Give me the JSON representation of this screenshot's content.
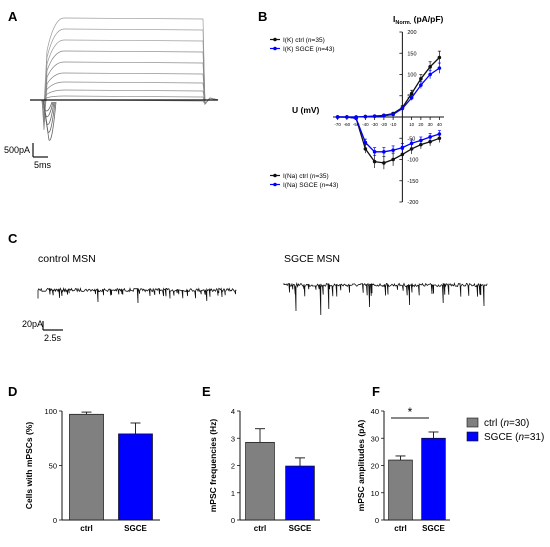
{
  "panels": {
    "A": {
      "label": "A",
      "scale_current": "500pA",
      "scale_time": "5ms"
    },
    "B": {
      "label": "B"
    },
    "C": {
      "label": "C",
      "trace_labels": [
        "control MSN",
        "SGCE MSN"
      ],
      "scale_current": "20pA",
      "scale_time": "2.5s"
    },
    "D": {
      "label": "D"
    },
    "E": {
      "label": "E"
    },
    "F": {
      "label": "F",
      "significance": "*"
    }
  },
  "legend_bars": [
    {
      "prefix": "ctrl (",
      "n_italic": "n",
      "suffix": "=30)",
      "color": "#808080"
    },
    {
      "prefix": "SGCE (",
      "n_italic": "n",
      "suffix": "=31)",
      "color": "#0000ff"
    }
  ],
  "colors": {
    "ctrl": "#808080",
    "sgce": "#0000ff",
    "black": "#111111"
  },
  "chart_data": [
    {
      "panel": "B",
      "type": "line",
      "xlabel": "U (mV)",
      "ylabel_main": "I",
      "ylabel_sub": "Norm.",
      "ylabel_unit": " (pA/pF)",
      "xlim": [
        -75,
        45
      ],
      "ylim": [
        -200,
        200
      ],
      "x_ticks": [
        -70,
        -60,
        -50,
        -40,
        -30,
        -20,
        -10,
        10,
        20,
        30,
        40
      ],
      "y_ticks": [
        -200,
        -150,
        -100,
        -50,
        50,
        100,
        150,
        200
      ],
      "x": [
        -70,
        -60,
        -50,
        -40,
        -30,
        -20,
        -10,
        0,
        10,
        20,
        30,
        40
      ],
      "series": [
        {
          "name": "I(K) ctrl",
          "n": "35",
          "color": "#111111",
          "legend_group": "top",
          "values": [
            0,
            0,
            0,
            1,
            2,
            4,
            8,
            22,
            55,
            90,
            118,
            140
          ],
          "err": [
            0,
            0,
            0,
            0,
            1,
            2,
            3,
            5,
            8,
            10,
            12,
            15
          ]
        },
        {
          "name": "I(K) SGCE",
          "n": "43",
          "color": "#0000ff",
          "legend_group": "top",
          "values": [
            0,
            0,
            0,
            1,
            2,
            3,
            6,
            20,
            45,
            75,
            100,
            115
          ],
          "err": [
            0,
            0,
            0,
            0,
            1,
            2,
            3,
            4,
            6,
            8,
            10,
            12
          ]
        },
        {
          "name": "I(Na) ctrl",
          "n": "35",
          "color": "#111111",
          "legend_group": "bottom",
          "values": [
            0,
            0,
            -3,
            -75,
            -105,
            -108,
            -100,
            -88,
            -75,
            -65,
            -58,
            -50
          ],
          "err": [
            0,
            0,
            2,
            10,
            15,
            15,
            15,
            12,
            12,
            10,
            10,
            10
          ]
        },
        {
          "name": "I(Na) SGCE",
          "n": "43",
          "color": "#0000ff",
          "legend_group": "bottom",
          "values": [
            0,
            0,
            -3,
            -60,
            -82,
            -82,
            -78,
            -72,
            -62,
            -55,
            -47,
            -40
          ],
          "err": [
            0,
            0,
            2,
            8,
            10,
            10,
            10,
            10,
            8,
            8,
            8,
            8
          ]
        }
      ]
    },
    {
      "panel": "D",
      "type": "bar",
      "ylabel": "Cells with mPSCs (%)",
      "ylim": [
        0,
        100
      ],
      "y_ticks": [
        0,
        50,
        100
      ],
      "categories": [
        "ctrl",
        "SGCE"
      ],
      "values": [
        97,
        79
      ],
      "err": [
        2,
        10
      ],
      "colors": [
        "#808080",
        "#0000ff"
      ]
    },
    {
      "panel": "E",
      "type": "bar",
      "ylabel": "mPSC frequencies (Hz)",
      "ylim": [
        0,
        4
      ],
      "y_ticks": [
        0,
        1,
        2,
        3,
        4
      ],
      "categories": [
        "ctrl",
        "SGCE"
      ],
      "values": [
        2.85,
        1.98
      ],
      "err": [
        0.5,
        0.3
      ],
      "colors": [
        "#808080",
        "#0000ff"
      ]
    },
    {
      "panel": "F",
      "type": "bar",
      "ylabel": "mPSC amplitudes (pA)",
      "ylim": [
        0,
        40
      ],
      "y_ticks": [
        0,
        10,
        20,
        30,
        40
      ],
      "categories": [
        "ctrl",
        "SGCE"
      ],
      "values": [
        22,
        30
      ],
      "err": [
        1.5,
        2.3
      ],
      "colors": [
        "#808080",
        "#0000ff"
      ]
    }
  ]
}
